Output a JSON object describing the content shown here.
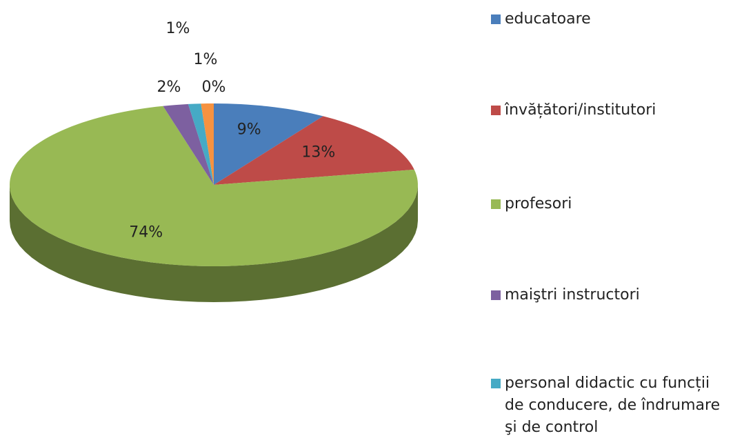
{
  "chart_data": {
    "type": "pie3d",
    "categories": [
      "educatoare",
      "învățători/institutori",
      "profesori",
      "maiştri instructori",
      "personal didactic cu funcții de conducere, de îndrumare şi de control",
      null,
      null
    ],
    "values": [
      9,
      13,
      74,
      2,
      1,
      1,
      0
    ],
    "value_labels": [
      "9%",
      "13%",
      "74%",
      "2%",
      "1%",
      "1%",
      "0%"
    ],
    "colors": [
      "#4a7ebb",
      "#be4b48",
      "#98b954",
      "#7d60a0",
      "#46aac5",
      "#f69240",
      "#2c4d75"
    ],
    "legend": "right"
  }
}
